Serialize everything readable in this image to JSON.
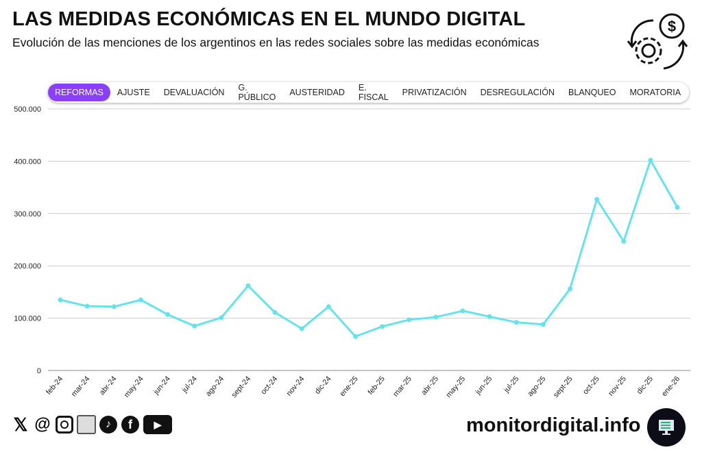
{
  "header": {
    "title": "LAS MEDIDAS ECONÓMICAS EN EL MUNDO DIGITAL",
    "subtitle": "Evolución de las menciones de los argentinos en las redes sociales sobre las medidas económicas"
  },
  "tabs": [
    "REFORMAS",
    "AJUSTE",
    "DEVALUACIÓN",
    "G. PÚBLICO",
    "AUSTERIDAD",
    "E. FISCAL",
    "PRIVATIZACIÓN",
    "DESREGULACIÓN",
    "BLANQUEO",
    "MORATORIA"
  ],
  "active_tab": "REFORMAS",
  "colors": {
    "accent": "#8a3ffc",
    "line": "#66e3ea"
  },
  "chart_data": {
    "type": "line",
    "title": "",
    "xlabel": "",
    "ylabel": "",
    "ylim": [
      0,
      500000
    ],
    "grid": true,
    "yticks": [
      "0",
      "100.000",
      "200.000",
      "300.000",
      "400.000",
      "500.000"
    ],
    "categories": [
      "feb-24",
      "mar-24",
      "abr-24",
      "may-24",
      "jun-24",
      "jul-24",
      "ago-24",
      "sept-24",
      "oct-24",
      "nov-24",
      "dic-24",
      "ene-25",
      "feb-25",
      "mar-25",
      "abr-25",
      "may-25",
      "jun-25",
      "jul-25",
      "ago-25",
      "sept-25",
      "oct-25",
      "nov-25",
      "dic-25",
      "ene-26"
    ],
    "values": [
      135000,
      123000,
      122000,
      135000,
      107000,
      85000,
      101000,
      162000,
      111000,
      80000,
      122000,
      65000,
      84000,
      97000,
      102000,
      114000,
      103000,
      92000,
      88000,
      156000,
      327000,
      247000,
      402000,
      312000
    ]
  },
  "footer": {
    "site": "monitordigital.info",
    "social_icons": [
      "x-icon",
      "threads-icon",
      "instagram-icon",
      "reddit-icon",
      "tiktok-icon",
      "facebook-icon",
      "youtube-icon"
    ]
  }
}
